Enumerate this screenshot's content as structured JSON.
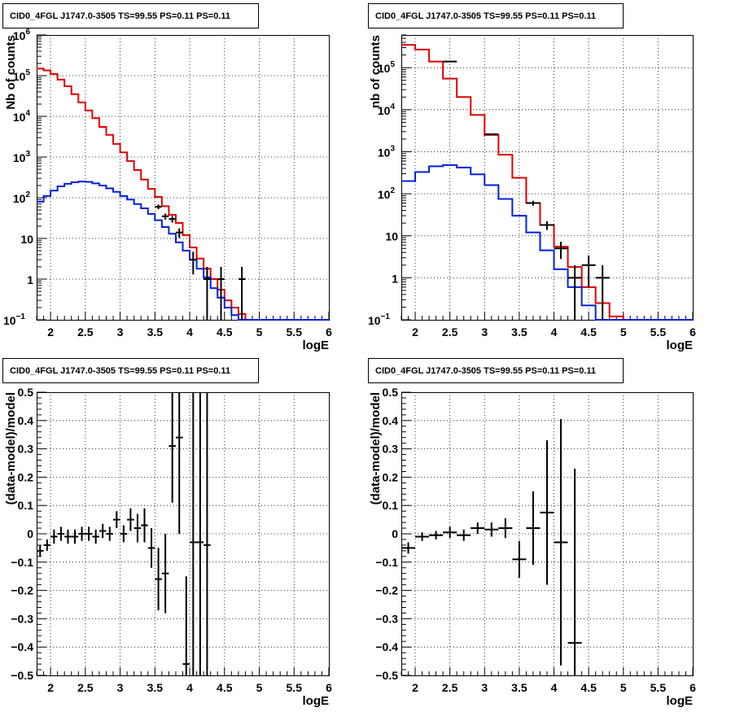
{
  "figure": {
    "background": "#ffffff"
  },
  "colors": {
    "data": "#000000",
    "total_model": "#e00000",
    "source_model": "#0020e0",
    "grid": "#000000"
  },
  "chart_data": [
    {
      "type": "line",
      "title": "CID0_4FGL J1747.0-3505 TS=99.55 PS=0.11 PS=0.11",
      "xlabel": "logE",
      "ylabel": "Nb of counts",
      "xlim": [
        1.8,
        6.0
      ],
      "ylim": [
        0.1,
        1000000
      ],
      "yscale": "log",
      "grid": true,
      "x_ticks": [
        2,
        2.5,
        3,
        3.5,
        4,
        4.5,
        5,
        5.5,
        6
      ],
      "x_tick_labels": [
        "2",
        "2.5",
        "3",
        "3.5",
        "4",
        "4.5",
        "5",
        "5.5",
        "6"
      ],
      "y_ticks": [
        0.1,
        1,
        10,
        100,
        1000,
        10000,
        100000,
        1000000
      ],
      "y_tick_labels": [
        {
          "base": "10",
          "exp": "−1"
        },
        {
          "base": "1",
          "exp": ""
        },
        {
          "base": "10",
          "exp": ""
        },
        {
          "base": "10",
          "exp": "2"
        },
        {
          "base": "10",
          "exp": "3"
        },
        {
          "base": "10",
          "exp": "4"
        },
        {
          "base": "10",
          "exp": "5"
        },
        {
          "base": "10",
          "exp": "6"
        }
      ],
      "bin_edges": [
        1.8,
        1.9,
        2.0,
        2.1,
        2.2,
        2.3,
        2.4,
        2.5,
        2.6,
        2.7,
        2.8,
        2.9,
        3.0,
        3.1,
        3.2,
        3.3,
        3.4,
        3.5,
        3.6,
        3.7,
        3.8,
        3.9,
        4.0,
        4.1,
        4.2,
        4.3,
        4.4,
        4.5,
        4.6,
        4.7,
        4.8,
        4.9,
        5.0,
        5.1,
        5.2,
        5.3,
        5.4,
        5.5,
        5.6,
        5.7,
        5.8,
        5.9,
        6.0
      ],
      "series": [
        {
          "key": "total_model",
          "style": "step",
          "values": [
            150000,
            135000,
            110000,
            80000,
            55000,
            35000,
            22000,
            14000,
            9000,
            5500,
            3500,
            2100,
            1300,
            800,
            480,
            280,
            165,
            105,
            62,
            38,
            24,
            12,
            6,
            3.2,
            1.8,
            1.0,
            0.55,
            0.3,
            0.2,
            0.14,
            0.1,
            0.1,
            0.1,
            0.1,
            0.1,
            0.1,
            0.1,
            0.1,
            0.1,
            0.1,
            0.1,
            0.1
          ]
        },
        {
          "key": "source_model",
          "style": "step",
          "values": [
            80,
            110,
            150,
            190,
            220,
            240,
            250,
            245,
            225,
            200,
            170,
            140,
            110,
            90,
            70,
            55,
            40,
            28,
            19,
            13,
            8,
            5,
            3,
            1.8,
            1.1,
            0.6,
            0.35,
            0.2,
            0.13,
            0.1,
            0.1,
            0.1,
            0.1,
            0.1,
            0.1,
            0.1,
            0.1,
            0.1,
            0.1,
            0.1,
            0.1,
            0.1
          ]
        },
        {
          "key": "data",
          "style": "errorbar",
          "points": [
            {
              "x": 3.55,
              "y": 60,
              "xerr": 0.05,
              "yerr_lo": 8,
              "yerr_hi": 8
            },
            {
              "x": 3.65,
              "y": 35,
              "xerr": 0.05,
              "yerr_lo": 6,
              "yerr_hi": 6
            },
            {
              "x": 3.75,
              "y": 30,
              "xerr": 0.05,
              "yerr_lo": 5.5,
              "yerr_hi": 5.5
            },
            {
              "x": 3.85,
              "y": 14,
              "xerr": 0.05,
              "yerr_lo": 3.7,
              "yerr_hi": 3.7
            },
            {
              "x": 4.05,
              "y": 3,
              "xerr": 0.05,
              "yerr_lo": 1.7,
              "yerr_hi": 1.7
            },
            {
              "x": 4.25,
              "y": 1,
              "xerr": 0.05,
              "yerr_lo": 1,
              "yerr_hi": 1
            },
            {
              "x": 4.45,
              "y": 1,
              "xerr": 0.05,
              "yerr_lo": 1,
              "yerr_hi": 1
            },
            {
              "x": 4.75,
              "y": 1,
              "xerr": 0.05,
              "yerr_lo": 1,
              "yerr_hi": 1
            }
          ]
        }
      ]
    },
    {
      "type": "line",
      "title": "CID0_4FGL J1747.0-3505 TS=99.55 PS=0.11 PS=0.11",
      "xlabel": "logE",
      "ylabel": "nb of counts",
      "xlim": [
        1.8,
        6.0
      ],
      "ylim": [
        0.1,
        600000
      ],
      "yscale": "log",
      "grid": true,
      "x_ticks": [
        2,
        2.5,
        3,
        3.5,
        4,
        4.5,
        5,
        5.5,
        6
      ],
      "x_tick_labels": [
        "2",
        "2.5",
        "3",
        "3.5",
        "4",
        "4.5",
        "5",
        "5.5",
        "6"
      ],
      "y_ticks": [
        0.1,
        1,
        10,
        100,
        1000,
        10000,
        100000
      ],
      "y_tick_labels": [
        {
          "base": "10",
          "exp": "−1"
        },
        {
          "base": "1",
          "exp": ""
        },
        {
          "base": "10",
          "exp": ""
        },
        {
          "base": "10",
          "exp": "2"
        },
        {
          "base": "10",
          "exp": "3"
        },
        {
          "base": "10",
          "exp": "4"
        },
        {
          "base": "10",
          "exp": "5"
        }
      ],
      "bin_edges": [
        1.8,
        2.0,
        2.2,
        2.4,
        2.6,
        2.8,
        3.0,
        3.2,
        3.4,
        3.6,
        3.8,
        4.0,
        4.2,
        4.4,
        4.6,
        4.8,
        5.0,
        5.2,
        5.4,
        5.6,
        5.8,
        6.0
      ],
      "series": [
        {
          "key": "total_model",
          "style": "step",
          "values": [
            350000,
            270000,
            140000,
            55000,
            20000,
            7500,
            2500,
            850,
            240,
            60,
            18,
            5.5,
            1.8,
            0.6,
            0.25,
            0.12,
            0.1,
            0.1,
            0.1,
            0.1,
            0.1
          ]
        },
        {
          "key": "source_model",
          "style": "step",
          "values": [
            200,
            330,
            450,
            480,
            420,
            290,
            160,
            75,
            30,
            12,
            4.5,
            1.6,
            0.6,
            0.22,
            0.1,
            0.1,
            0.1,
            0.1,
            0.1,
            0.1,
            0.1
          ]
        },
        {
          "key": "data",
          "style": "errorbar",
          "points": [
            {
              "x": 2.5,
              "y": 140000,
              "xerr": 0.1,
              "yerr_lo": 400,
              "yerr_hi": 400
            },
            {
              "x": 3.1,
              "y": 2600,
              "xerr": 0.1,
              "yerr_lo": 50,
              "yerr_hi": 50
            },
            {
              "x": 3.7,
              "y": 60,
              "xerr": 0.1,
              "yerr_lo": 8,
              "yerr_hi": 8
            },
            {
              "x": 3.9,
              "y": 18,
              "xerr": 0.1,
              "yerr_lo": 4.2,
              "yerr_hi": 4.2
            },
            {
              "x": 4.1,
              "y": 5,
              "xerr": 0.1,
              "yerr_lo": 2.2,
              "yerr_hi": 2.2
            },
            {
              "x": 4.3,
              "y": 1,
              "xerr": 0.1,
              "yerr_lo": 1,
              "yerr_hi": 1
            },
            {
              "x": 4.5,
              "y": 2,
              "xerr": 0.1,
              "yerr_lo": 1.4,
              "yerr_hi": 1.4
            },
            {
              "x": 4.7,
              "y": 1,
              "xerr": 0.1,
              "yerr_lo": 1,
              "yerr_hi": 1
            }
          ]
        }
      ]
    },
    {
      "type": "scatter",
      "title": "CID0_4FGL J1747.0-3505 TS=99.55 PS=0.11 PS=0.11",
      "xlabel": "logE",
      "ylabel": "(data-model)/model",
      "xlim": [
        1.8,
        6.0
      ],
      "ylim": [
        -0.5,
        0.5
      ],
      "yscale": "linear",
      "grid": true,
      "x_ticks": [
        2,
        2.5,
        3,
        3.5,
        4,
        4.5,
        5,
        5.5,
        6
      ],
      "x_tick_labels": [
        "2",
        "2.5",
        "3",
        "3.5",
        "4",
        "4.5",
        "5",
        "5.5",
        "6"
      ],
      "y_ticks": [
        -0.5,
        -0.4,
        -0.3,
        -0.2,
        -0.1,
        0,
        0.1,
        0.2,
        0.3,
        0.4,
        0.5
      ],
      "y_tick_labels": [
        "−0.5",
        "−0.4",
        "−0.3",
        "−0.2",
        "−0.1",
        "0",
        "0.1",
        "0.2",
        "0.3",
        "0.4",
        "0.5"
      ],
      "series": [
        {
          "key": "data",
          "style": "errorbar",
          "points": [
            {
              "x": 1.85,
              "y": -0.06,
              "xerr": 0.05,
              "err": 0.02
            },
            {
              "x": 1.95,
              "y": -0.04,
              "xerr": 0.05,
              "err": 0.02
            },
            {
              "x": 2.05,
              "y": -0.01,
              "xerr": 0.05,
              "err": 0.025
            },
            {
              "x": 2.15,
              "y": 0.0,
              "xerr": 0.05,
              "err": 0.025
            },
            {
              "x": 2.25,
              "y": -0.01,
              "xerr": 0.05,
              "err": 0.025
            },
            {
              "x": 2.35,
              "y": -0.01,
              "xerr": 0.05,
              "err": 0.025
            },
            {
              "x": 2.45,
              "y": 0.0,
              "xerr": 0.05,
              "err": 0.025
            },
            {
              "x": 2.55,
              "y": 0.0,
              "xerr": 0.05,
              "err": 0.025
            },
            {
              "x": 2.65,
              "y": -0.01,
              "xerr": 0.05,
              "err": 0.025
            },
            {
              "x": 2.75,
              "y": 0.01,
              "xerr": 0.05,
              "err": 0.025
            },
            {
              "x": 2.85,
              "y": 0.0,
              "xerr": 0.05,
              "err": 0.025
            },
            {
              "x": 2.95,
              "y": 0.05,
              "xerr": 0.05,
              "err": 0.03
            },
            {
              "x": 3.05,
              "y": 0.0,
              "xerr": 0.05,
              "err": 0.03
            },
            {
              "x": 3.15,
              "y": 0.05,
              "xerr": 0.05,
              "err": 0.04
            },
            {
              "x": 3.25,
              "y": 0.02,
              "xerr": 0.05,
              "err": 0.05
            },
            {
              "x": 3.35,
              "y": 0.03,
              "xerr": 0.05,
              "err": 0.06
            },
            {
              "x": 3.45,
              "y": -0.05,
              "xerr": 0.05,
              "err": 0.07
            },
            {
              "x": 3.55,
              "y": -0.16,
              "xerr": 0.05,
              "err": 0.11
            },
            {
              "x": 3.65,
              "y": -0.14,
              "xerr": 0.05,
              "err": 0.14
            },
            {
              "x": 3.75,
              "y": 0.31,
              "xerr": 0.05,
              "err": 0.2
            },
            {
              "x": 3.85,
              "y": 0.34,
              "xerr": 0.05,
              "err": 0.34
            },
            {
              "x": 3.95,
              "y": -0.46,
              "xerr": 0.05,
              "err": 0.31
            },
            {
              "x": 4.05,
              "y": -0.03,
              "xerr": 0.05,
              "err": 1.0
            },
            {
              "x": 4.15,
              "y": -0.03,
              "xerr": 0.05,
              "err": 1.0
            },
            {
              "x": 4.25,
              "y": -0.04,
              "xerr": 0.05,
              "err": 1.0
            }
          ]
        }
      ]
    },
    {
      "type": "scatter",
      "title": "CID0_4FGL J1747.0-3505 TS=99.55 PS=0.11 PS=0.11",
      "xlabel": "logE",
      "ylabel": "(data-model)/model",
      "xlim": [
        1.8,
        6.0
      ],
      "ylim": [
        -0.5,
        0.5
      ],
      "yscale": "linear",
      "grid": true,
      "x_ticks": [
        2,
        2.5,
        3,
        3.5,
        4,
        4.5,
        5,
        5.5,
        6
      ],
      "x_tick_labels": [
        "2",
        "2.5",
        "3",
        "3.5",
        "4",
        "4.5",
        "5",
        "5.5",
        "6"
      ],
      "y_ticks": [
        -0.5,
        -0.4,
        -0.3,
        -0.2,
        -0.1,
        0,
        0.1,
        0.2,
        0.3,
        0.4,
        0.5
      ],
      "y_tick_labels": [
        "−0.5",
        "−0.4",
        "−0.3",
        "−0.2",
        "−0.1",
        "0",
        "0.1",
        "0.2",
        "0.3",
        "0.4",
        "0.5"
      ],
      "series": [
        {
          "key": "data",
          "style": "errorbar",
          "points": [
            {
              "x": 1.9,
              "y": -0.05,
              "xerr": 0.1,
              "err": 0.02
            },
            {
              "x": 2.1,
              "y": -0.01,
              "xerr": 0.1,
              "err": 0.015
            },
            {
              "x": 2.3,
              "y": -0.005,
              "xerr": 0.1,
              "err": 0.015
            },
            {
              "x": 2.5,
              "y": 0.005,
              "xerr": 0.1,
              "err": 0.02
            },
            {
              "x": 2.7,
              "y": -0.005,
              "xerr": 0.1,
              "err": 0.02
            },
            {
              "x": 2.9,
              "y": 0.02,
              "xerr": 0.1,
              "err": 0.02
            },
            {
              "x": 3.1,
              "y": 0.015,
              "xerr": 0.1,
              "err": 0.025
            },
            {
              "x": 3.3,
              "y": 0.02,
              "xerr": 0.1,
              "err": 0.035
            },
            {
              "x": 3.5,
              "y": -0.09,
              "xerr": 0.1,
              "err": 0.065
            },
            {
              "x": 3.7,
              "y": 0.02,
              "xerr": 0.1,
              "err": 0.13
            },
            {
              "x": 3.9,
              "y": 0.075,
              "xerr": 0.1,
              "err": 0.255
            },
            {
              "x": 4.1,
              "y": -0.03,
              "xerr": 0.1,
              "err": 0.435
            },
            {
              "x": 4.3,
              "y": -0.385,
              "xerr": 0.1,
              "err": 0.615
            }
          ]
        }
      ]
    }
  ]
}
